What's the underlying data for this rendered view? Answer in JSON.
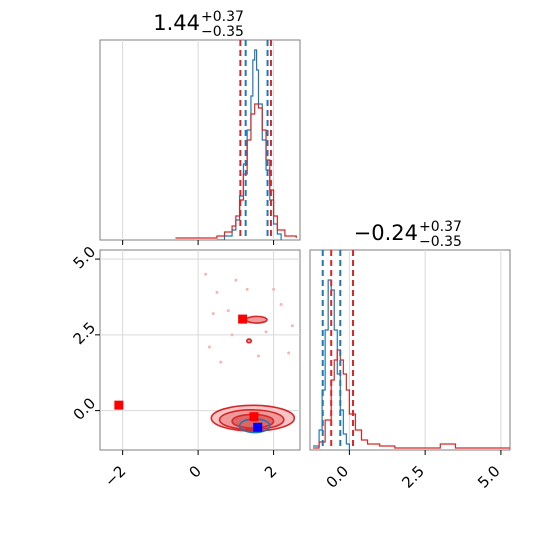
{
  "chart_data": [
    {
      "type": "histogram",
      "panel": "x1-marginal",
      "title": {
        "main": "1.44",
        "upper": "+0.37",
        "lower": "−0.35"
      },
      "xlim": [
        -2.6,
        2.7
      ],
      "ylim": [
        0,
        1
      ],
      "quantiles": {
        "red": [
          1.12,
          1.93
        ],
        "blue": [
          1.26,
          1.84
        ]
      },
      "series": [
        {
          "color": "#1f77b4",
          "x": [
            0.5,
            0.7,
            0.9,
            1.0,
            1.1,
            1.2,
            1.3,
            1.4,
            1.45,
            1.5,
            1.55,
            1.6,
            1.7,
            1.8,
            1.9,
            2.0,
            2.1,
            2.2
          ],
          "y": [
            0.0,
            0.02,
            0.05,
            0.1,
            0.22,
            0.38,
            0.55,
            0.72,
            0.9,
            0.95,
            0.85,
            0.68,
            0.5,
            0.35,
            0.2,
            0.08,
            0.03,
            0.0
          ]
        },
        {
          "color": "#d62728",
          "x": [
            -0.6,
            0.0,
            0.5,
            0.7,
            0.9,
            1.0,
            1.1,
            1.2,
            1.3,
            1.4,
            1.5,
            1.6,
            1.7,
            1.8,
            1.9,
            2.0,
            2.1,
            2.3,
            2.6
          ],
          "y": [
            0.01,
            0.01,
            0.02,
            0.04,
            0.07,
            0.12,
            0.2,
            0.33,
            0.5,
            0.63,
            0.68,
            0.66,
            0.55,
            0.4,
            0.25,
            0.12,
            0.05,
            0.02,
            0.01
          ]
        }
      ],
      "ticks": {
        "x": [
          -2,
          0,
          2
        ]
      }
    },
    {
      "type": "histogram",
      "panel": "x2-marginal",
      "title": {
        "main": "−0.24",
        "upper": "+0.37",
        "lower": "−0.35"
      },
      "xlim": [
        -1.3,
        5.3
      ],
      "ylim": [
        0,
        1
      ],
      "quantiles": {
        "red": [
          -0.6,
          0.12
        ],
        "blue": [
          -0.88,
          -0.3
        ]
      },
      "series": [
        {
          "color": "#1f77b4",
          "x": [
            -1.2,
            -1.0,
            -0.9,
            -0.8,
            -0.7,
            -0.6,
            -0.5,
            -0.4,
            -0.3,
            -0.2,
            -0.1,
            0.0
          ],
          "y": [
            0.02,
            0.1,
            0.3,
            0.6,
            0.85,
            0.8,
            0.6,
            0.38,
            0.2,
            0.08,
            0.03,
            0.0
          ]
        },
        {
          "color": "#d62728",
          "x": [
            -1.2,
            -1.0,
            -0.8,
            -0.6,
            -0.5,
            -0.4,
            -0.3,
            -0.2,
            -0.1,
            0.0,
            0.2,
            0.4,
            0.6,
            1.0,
            1.5,
            2.0,
            2.5,
            3.0,
            3.5,
            4.0,
            4.5,
            5.0,
            5.3
          ],
          "y": [
            0.01,
            0.04,
            0.15,
            0.35,
            0.45,
            0.5,
            0.45,
            0.38,
            0.3,
            0.18,
            0.1,
            0.05,
            0.03,
            0.02,
            0.01,
            0.01,
            0.01,
            0.03,
            0.01,
            0.01,
            0.01,
            0.01,
            0.01
          ]
        }
      ],
      "ticks": {
        "x": [
          "0.0",
          "2.5",
          "5.0"
        ],
        "x_values": [
          0.0,
          2.5,
          5.0
        ]
      }
    },
    {
      "type": "contour",
      "panel": "x1-x2-joint",
      "xlim": [
        -2.6,
        2.7
      ],
      "ylim": [
        -1.3,
        5.3
      ],
      "grid": true,
      "ticks": {
        "x": [
          "−2",
          "0",
          "2"
        ],
        "x_values": [
          -2,
          0,
          2
        ],
        "y": [
          "0.0",
          "2.5",
          "5.0"
        ],
        "y_values": [
          0.0,
          2.5,
          5.0
        ]
      },
      "contours": [
        {
          "color": "#d62728",
          "kind": "outer",
          "cx": 1.45,
          "cy": -0.25,
          "rx": 2.2,
          "ry": 0.85
        },
        {
          "color": "#d62728",
          "kind": "mid",
          "cx": 1.42,
          "cy": -0.3,
          "rx": 1.7,
          "ry": 0.65
        },
        {
          "color": "#d62728",
          "kind": "inner",
          "cx": 1.45,
          "cy": -0.35,
          "rx": 1.1,
          "ry": 0.45
        },
        {
          "color": "#d62728",
          "kind": "island",
          "cx": 1.55,
          "cy": 3.0,
          "rx": 0.55,
          "ry": 0.22
        },
        {
          "color": "#d62728",
          "kind": "island",
          "cx": 1.35,
          "cy": 2.3,
          "rx": 0.12,
          "ry": 0.12
        },
        {
          "color": "#1f77b4",
          "kind": "blue",
          "cx": 1.5,
          "cy": -0.5,
          "rx": 0.8,
          "ry": 0.45
        }
      ],
      "markers": [
        {
          "color": "#ff0000",
          "x": -2.1,
          "y": 0.18
        },
        {
          "color": "#ff0000",
          "x": 1.18,
          "y": 3.02
        },
        {
          "color": "#ff0000",
          "x": 1.48,
          "y": -0.2
        },
        {
          "color": "#0000ff",
          "x": 1.58,
          "y": -0.55
        }
      ]
    }
  ]
}
